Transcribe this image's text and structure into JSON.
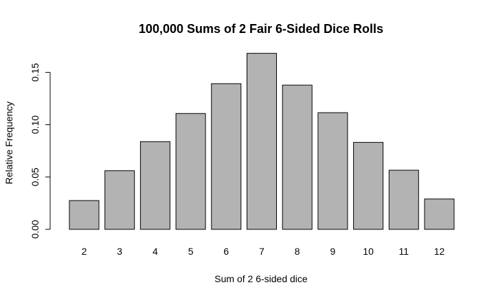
{
  "chart_data": {
    "type": "bar",
    "title": "100,000 Sums of 2 Fair 6-Sided Dice Rolls",
    "xlabel": "Sum of 2 6-sided dice",
    "ylabel": "Relative Frequency",
    "categories": [
      "2",
      "3",
      "4",
      "5",
      "6",
      "7",
      "8",
      "9",
      "10",
      "11",
      "12"
    ],
    "values": [
      0.0275,
      0.056,
      0.0838,
      0.1107,
      0.1392,
      0.1682,
      0.1378,
      0.1115,
      0.0831,
      0.0565,
      0.029
    ],
    "ylim": [
      0,
      0.175
    ],
    "yticks": [
      0.0,
      0.05,
      0.1,
      0.15
    ],
    "ytick_labels": [
      "0.00",
      "0.05",
      "0.10",
      "0.15"
    ],
    "grid": false,
    "bar_color": "#b3b3b3"
  }
}
